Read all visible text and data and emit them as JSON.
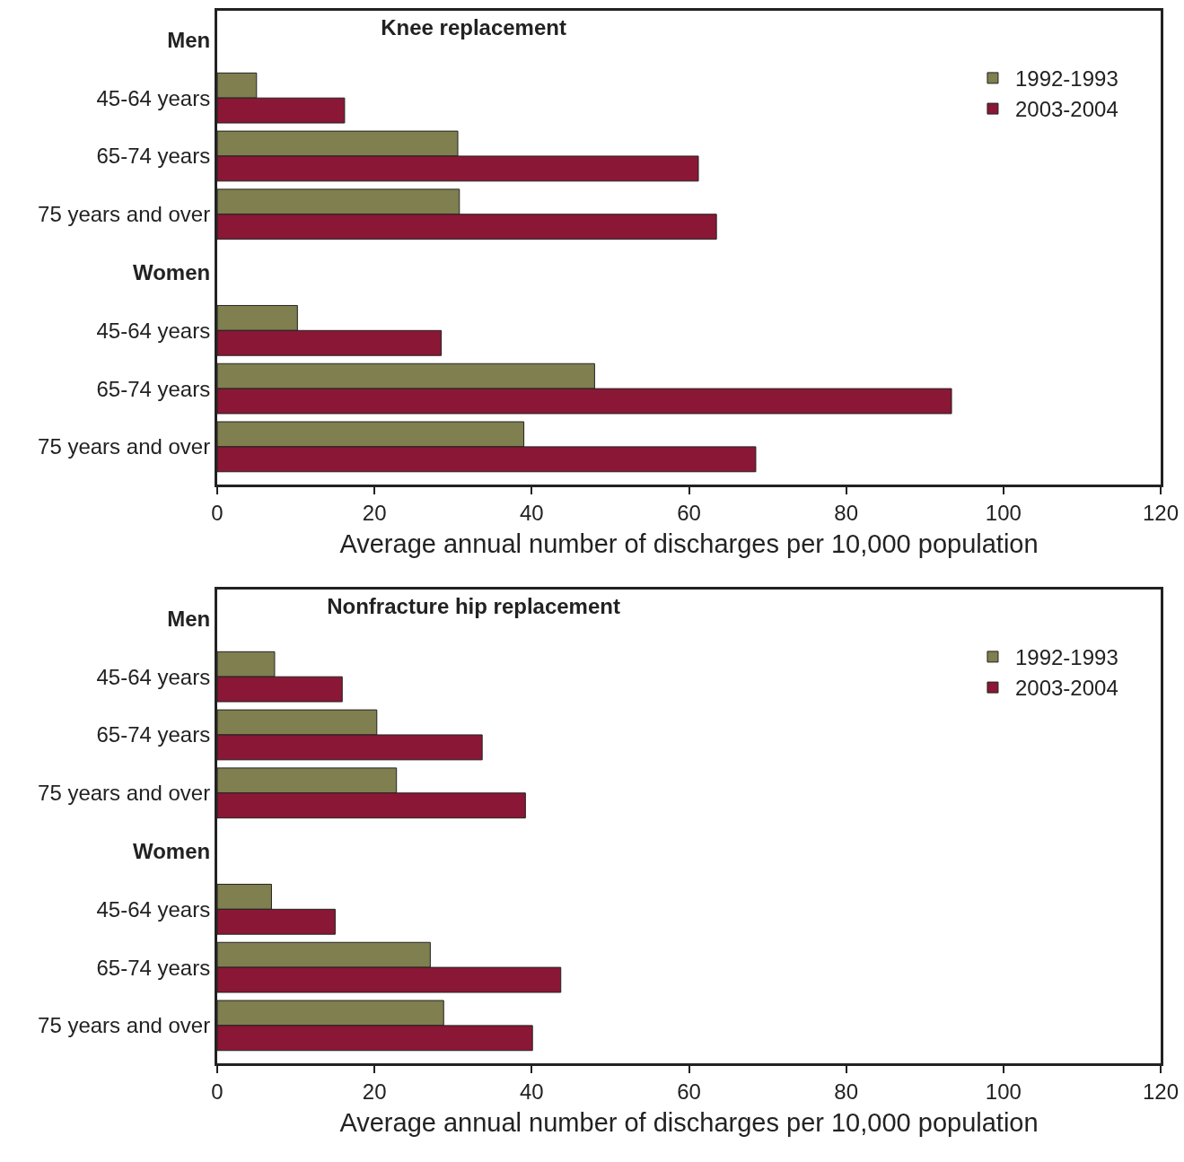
{
  "chart_data": [
    {
      "type": "bar",
      "orientation": "horizontal",
      "title": "Knee replacement",
      "xlabel": "Average annual number of discharges per 10,000 population",
      "categories": [
        "Men",
        "45-64 years",
        "65-74 years",
        "75 years and over",
        "Women",
        "45-64 years",
        "65-74 years",
        "75 years and over"
      ],
      "series": [
        {
          "name": "1992-1993",
          "color": "#7f7f4f",
          "values": [
            null,
            5.0,
            30.6,
            30.8,
            null,
            10.2,
            48.0,
            39.0
          ]
        },
        {
          "name": "2003-2004",
          "color": "#8a1735",
          "values": [
            null,
            16.2,
            61.2,
            63.5,
            null,
            28.5,
            93.4,
            68.5
          ]
        }
      ],
      "xlim": [
        0,
        120
      ],
      "xticks": [
        0,
        20,
        40,
        60,
        80,
        100,
        120
      ],
      "grid": false,
      "legend": "top right"
    },
    {
      "type": "bar",
      "orientation": "horizontal",
      "title": "Nonfracture hip replacement",
      "xlabel": "Average annual number of discharges per 10,000 population",
      "categories": [
        "Men",
        "45-64 years",
        "65-74 years",
        "75 years and over",
        "Women",
        "45-64 years",
        "65-74 years",
        "75 years and over"
      ],
      "series": [
        {
          "name": "1992-1993",
          "color": "#7f7f4f",
          "values": [
            null,
            7.3,
            20.3,
            22.8,
            null,
            6.9,
            27.1,
            28.8
          ]
        },
        {
          "name": "2003-2004",
          "color": "#8a1735",
          "values": [
            null,
            15.9,
            33.7,
            39.2,
            null,
            15.0,
            43.7,
            40.1
          ]
        }
      ],
      "xlim": [
        0,
        120
      ],
      "xticks": [
        0,
        20,
        40,
        60,
        80,
        100,
        120
      ],
      "grid": false,
      "legend": "top right"
    }
  ]
}
